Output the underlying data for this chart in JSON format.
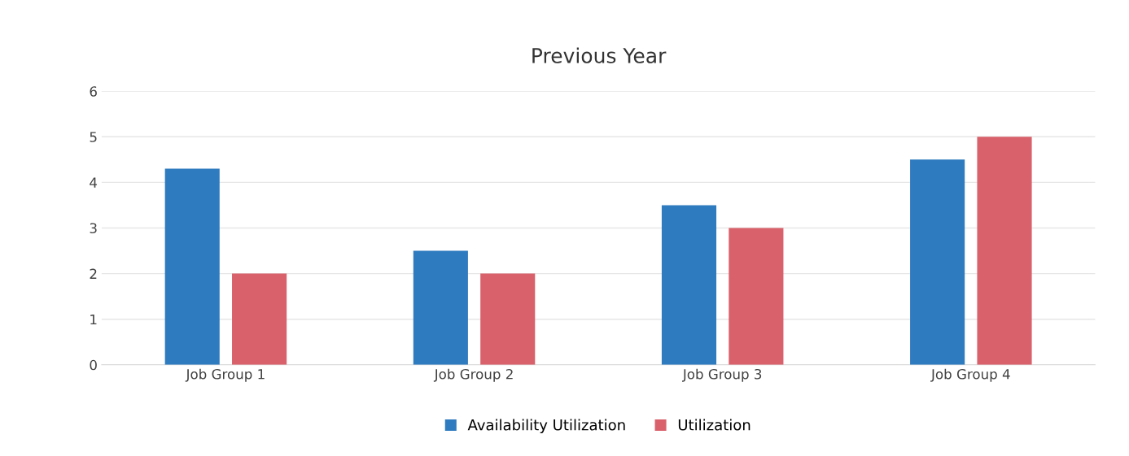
{
  "chart_data": {
    "type": "bar",
    "title": "Previous Year",
    "categories": [
      "Job Group 1",
      "Job Group 2",
      "Job Group 3",
      "Job Group 4"
    ],
    "series": [
      {
        "name": "Availability Utilization",
        "color": "#2f7bbf",
        "values": [
          4.3,
          2.5,
          3.5,
          4.5
        ]
      },
      {
        "name": "Utilization",
        "color": "#d9616b",
        "values": [
          2.0,
          2.0,
          3.0,
          5.0
        ]
      }
    ],
    "ylim": [
      0,
      6
    ],
    "yticks": [
      0,
      1,
      2,
      3,
      4,
      5,
      6
    ],
    "grid": "y",
    "legend": "bottom"
  }
}
